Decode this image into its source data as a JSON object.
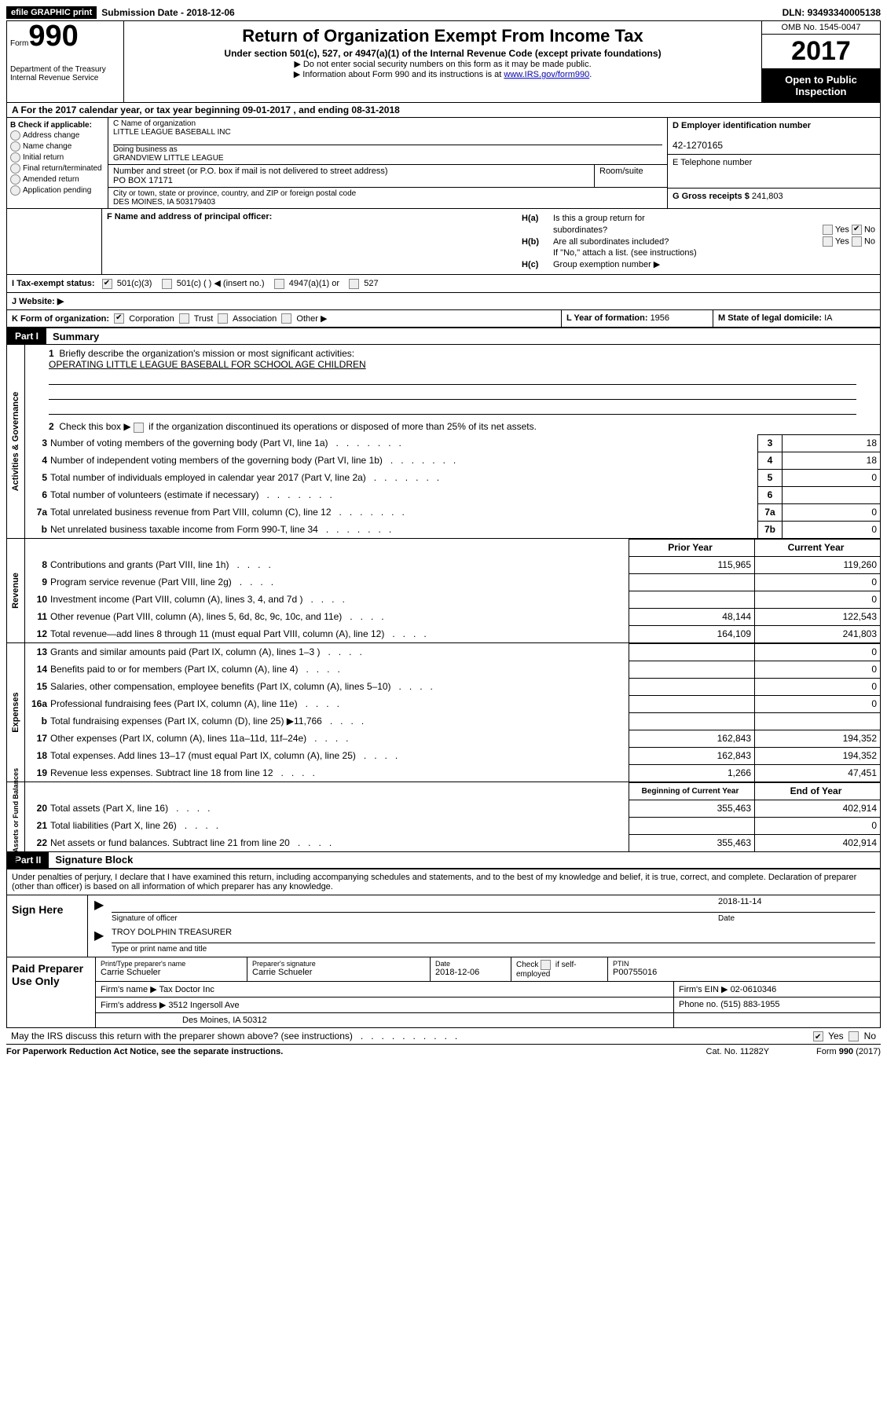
{
  "topbar": {
    "efile": "efile GRAPHIC print",
    "subdate_label": "Submission Date - ",
    "subdate": "2018-12-06",
    "dln_label": "DLN: ",
    "dln": "93493340005138"
  },
  "header": {
    "form_word": "Form",
    "form_num": "990",
    "dept1": "Department of the Treasury",
    "dept2": "Internal Revenue Service",
    "title": "Return of Organization Exempt From Income Tax",
    "subtitle": "Under section 501(c), 527, or 4947(a)(1) of the Internal Revenue Code (except private foundations)",
    "line1": "▶ Do not enter social security numbers on this form as it may be made public.",
    "line2a": "▶ Information about Form 990 and its instructions is at ",
    "line2b": "www.IRS.gov/form990",
    "omb": "OMB No. 1545-0047",
    "year": "2017",
    "open": "Open to Public Inspection"
  },
  "rowA": {
    "text_a": "A  For the 2017 calendar year, or tax year beginning ",
    "begin": "09-01-2017",
    "mid": "   , and ending ",
    "end": "08-31-2018"
  },
  "colB": {
    "title": "B Check if applicable:",
    "items": [
      "Address change",
      "Name change",
      "Initial return",
      "Final return/terminated",
      "Amended return",
      "Application pending"
    ]
  },
  "colC": {
    "name_label": "C Name of organization",
    "name": "LITTLE LEAGUE BASEBALL INC",
    "dba_label": "Doing business as",
    "dba": "GRANDVIEW LITTLE LEAGUE",
    "addr_label": "Number and street (or P.O. box if mail is not delivered to street address)",
    "addr": "PO BOX 17171",
    "room_label": "Room/suite",
    "city_label": "City or town, state or province, country, and ZIP or foreign postal code",
    "city": "DES MOINES, IA   503179403"
  },
  "colD": {
    "d_label": "D Employer identification number",
    "d_val": "42-1270165",
    "e_label": "E Telephone number",
    "g_label": "G Gross receipts $ ",
    "g_val": "241,803"
  },
  "rowF": {
    "label": "F Name and address of principal officer:"
  },
  "rowH": {
    "ha_label": "H(a)",
    "ha_text1": "Is this a group return for",
    "ha_text2": "subordinates?",
    "hb_label": "H(b)",
    "hb_text": "Are all subordinates included?",
    "hb_note": "If \"No,\" attach a list. (see instructions)",
    "hc_label": "H(c)",
    "hc_text": "Group exemption number ▶",
    "yes": "Yes",
    "no": "No"
  },
  "rowI": {
    "label": "I   Tax-exempt status:",
    "opts": [
      "501(c)(3)",
      "501(c) (  ) ◀ (insert no.)",
      "4947(a)(1) or",
      "527"
    ]
  },
  "rowJ": {
    "label": "J   Website: ▶"
  },
  "rowK": {
    "k": "K Form of organization:",
    "opts": [
      "Corporation",
      "Trust",
      "Association",
      "Other ▶"
    ],
    "l_label": "L Year of formation: ",
    "l_val": "1956",
    "m_label": "M State of legal domicile: ",
    "m_val": "IA"
  },
  "parts": {
    "p1": "Part I",
    "p1t": "Summary",
    "p2": "Part II",
    "p2t": "Signature Block"
  },
  "vlabels": {
    "gov": "Activities & Governance",
    "rev": "Revenue",
    "exp": "Expenses",
    "net": "Net Assets or\nFund Balances"
  },
  "summary": {
    "l1": "Briefly describe the organization's mission or most significant activities:",
    "mission": "OPERATING LITTLE LEAGUE BASEBALL FOR SCHOOL AGE CHILDREN",
    "l2": "Check this box ▶      if the organization discontinued its operations or disposed of more than 25% of its net assets.",
    "lines_gov": [
      {
        "n": "3",
        "d": "Number of voting members of the governing body (Part VI, line 1a)",
        "b": "3",
        "v": "18"
      },
      {
        "n": "4",
        "d": "Number of independent voting members of the governing body (Part VI, line 1b)",
        "b": "4",
        "v": "18"
      },
      {
        "n": "5",
        "d": "Total number of individuals employed in calendar year 2017 (Part V, line 2a)",
        "b": "5",
        "v": "0"
      },
      {
        "n": "6",
        "d": "Total number of volunteers (estimate if necessary)",
        "b": "6",
        "v": ""
      },
      {
        "n": "7a",
        "d": "Total unrelated business revenue from Part VIII, column (C), line 12",
        "b": "7a",
        "v": "0"
      },
      {
        "n": "b",
        "d": "Net unrelated business taxable income from Form 990-T, line 34",
        "b": "7b",
        "v": "0"
      }
    ],
    "col_prior": "Prior Year",
    "col_curr": "Current Year",
    "lines_rev": [
      {
        "n": "8",
        "d": "Contributions and grants (Part VIII, line 1h)",
        "p": "115,965",
        "c": "119,260"
      },
      {
        "n": "9",
        "d": "Program service revenue (Part VIII, line 2g)",
        "p": "",
        "c": "0"
      },
      {
        "n": "10",
        "d": "Investment income (Part VIII, column (A), lines 3, 4, and 7d )",
        "p": "",
        "c": "0"
      },
      {
        "n": "11",
        "d": "Other revenue (Part VIII, column (A), lines 5, 6d, 8c, 9c, 10c, and 11e)",
        "p": "48,144",
        "c": "122,543"
      },
      {
        "n": "12",
        "d": "Total revenue—add lines 8 through 11 (must equal Part VIII, column (A), line 12)",
        "p": "164,109",
        "c": "241,803"
      }
    ],
    "lines_exp": [
      {
        "n": "13",
        "d": "Grants and similar amounts paid (Part IX, column (A), lines 1–3 )",
        "p": "",
        "c": "0"
      },
      {
        "n": "14",
        "d": "Benefits paid to or for members (Part IX, column (A), line 4)",
        "p": "",
        "c": "0"
      },
      {
        "n": "15",
        "d": "Salaries, other compensation, employee benefits (Part IX, column (A), lines 5–10)",
        "p": "",
        "c": "0"
      },
      {
        "n": "16a",
        "d": "Professional fundraising fees (Part IX, column (A), line 11e)",
        "p": "",
        "c": "0"
      },
      {
        "n": "b",
        "d": "Total fundraising expenses (Part IX, column (D), line 25) ▶11,766",
        "p": "grey",
        "c": "grey"
      },
      {
        "n": "17",
        "d": "Other expenses (Part IX, column (A), lines 11a–11d, 11f–24e)",
        "p": "162,843",
        "c": "194,352"
      },
      {
        "n": "18",
        "d": "Total expenses. Add lines 13–17 (must equal Part IX, column (A), line 25)",
        "p": "162,843",
        "c": "194,352"
      },
      {
        "n": "19",
        "d": "Revenue less expenses. Subtract line 18 from line 12",
        "p": "1,266",
        "c": "47,451"
      }
    ],
    "col_begin": "Beginning of Current Year",
    "col_end": "End of Year",
    "lines_net": [
      {
        "n": "20",
        "d": "Total assets (Part X, line 16)",
        "p": "355,463",
        "c": "402,914"
      },
      {
        "n": "21",
        "d": "Total liabilities (Part X, line 26)",
        "p": "",
        "c": "0"
      },
      {
        "n": "22",
        "d": "Net assets or fund balances. Subtract line 21 from line 20",
        "p": "355,463",
        "c": "402,914"
      }
    ]
  },
  "sig": {
    "intro": "Under penalties of perjury, I declare that I have examined this return, including accompanying schedules and statements, and to the best of my knowledge and belief, it is true, correct, and complete. Declaration of preparer (other than officer) is based on all information of which preparer has any knowledge.",
    "sign_here": "Sign Here",
    "date": "2018-11-14",
    "sig_of_officer": "Signature of officer",
    "date_lbl": "Date",
    "name": "TROY DOLPHIN TREASURER",
    "name_lbl": "Type or print name and title"
  },
  "prep": {
    "title": "Paid Preparer Use Only",
    "r1": {
      "name_lbl": "Print/Type preparer's name",
      "name": "Carrie Schueler",
      "sig_lbl": "Preparer's signature",
      "sig": "Carrie Schueler",
      "date_lbl": "Date",
      "date": "2018-12-06",
      "check_lbl": "Check      if self-employed",
      "ptin_lbl": "PTIN",
      "ptin": "P00755016"
    },
    "r2": {
      "firm_lbl": "Firm's name      ▶ ",
      "firm": "Tax Doctor Inc",
      "ein_lbl": "Firm's EIN ▶ ",
      "ein": "02-0610346"
    },
    "r3": {
      "addr_lbl": "Firm's address ▶ ",
      "addr": "3512 Ingersoll Ave",
      "phone_lbl": "Phone no. ",
      "phone": "(515) 883-1955"
    },
    "r4": {
      "city": "Des Moines, IA   50312"
    }
  },
  "footer": {
    "discuss": "May the IRS discuss this return with the preparer shown above? (see instructions)",
    "yes": "Yes",
    "no": "No",
    "pra": "For Paperwork Reduction Act Notice, see the separate instructions.",
    "cat": "Cat. No. 11282Y",
    "form": "Form 990 (2017)"
  }
}
